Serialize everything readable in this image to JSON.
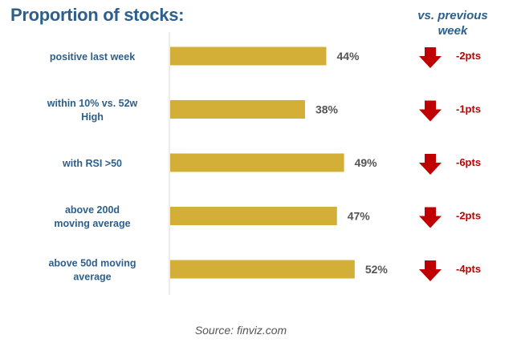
{
  "chart_data": {
    "type": "bar",
    "orientation": "horizontal",
    "title": "Proportion of stocks:",
    "change_header": "vs. previous week",
    "source": "Source: finviz.com",
    "xlim": [
      0,
      100
    ],
    "grid": false,
    "categories": [
      "positive last week",
      "within 10% vs. 52w High",
      "with RSI >50",
      "above 200d moving average",
      "above 50d moving average"
    ],
    "category_lines": [
      [
        "positive last week"
      ],
      [
        "within 10% vs. 52w",
        "High"
      ],
      [
        "with RSI >50"
      ],
      [
        "above 200d",
        "moving average"
      ],
      [
        "above 50d moving",
        "average"
      ]
    ],
    "values": [
      44,
      38,
      49,
      47,
      52
    ],
    "data_labels": [
      "44%",
      "38%",
      "49%",
      "47%",
      "52%"
    ],
    "changes": [
      -2,
      -1,
      -6,
      -2,
      -4
    ],
    "change_labels": [
      "-2pts",
      "-1pts",
      "-6pts",
      "-2pts",
      "-4pts"
    ],
    "change_direction": [
      "down",
      "down",
      "down",
      "down",
      "down"
    ],
    "colors": {
      "bar": "#d4af37",
      "title": "#2c5f8c",
      "category_label": "#2c5f8c",
      "value_label": "#555555",
      "arrow": "#c00000",
      "change_label": "#c00000",
      "axis": "#d9d9d9"
    }
  }
}
